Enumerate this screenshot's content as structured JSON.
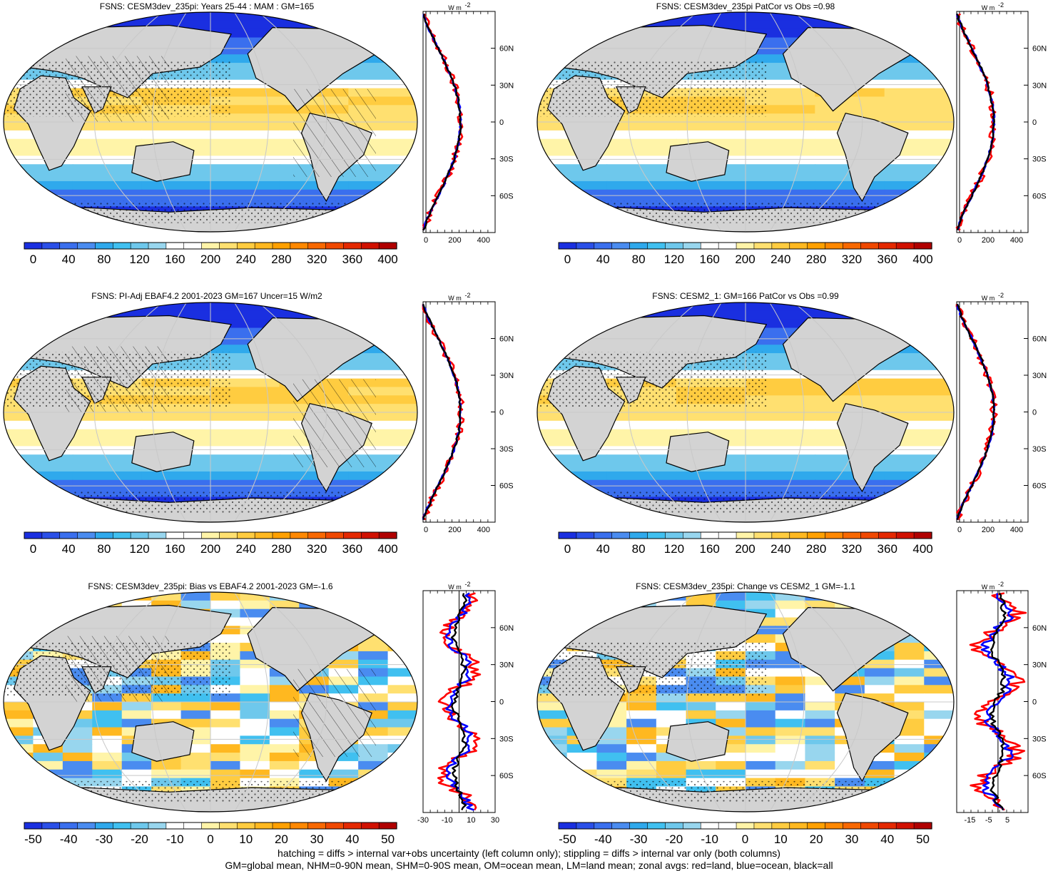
{
  "panels": [
    {
      "title": "FSNS: CESM3dev_235pi: Years 25-44 : MAM : GM=165",
      "kind": "abs"
    },
    {
      "title": "FSNS: CESM3dev_235pi PatCor vs Obs =0.98",
      "kind": "abs"
    },
    {
      "title": "FSNS: PI-Adj EBAF4.2 2001-2023 GM=167 Uncer=15 W/m2",
      "kind": "abs"
    },
    {
      "title": "FSNS: CESM2_1: GM=166 PatCor vs Obs =0.99",
      "kind": "abs"
    },
    {
      "title": "FSNS: CESM3dev_235pi: Bias vs EBAF4.2 2001-2023 GM=-1.6",
      "kind": "diff"
    },
    {
      "title": "FSNS: CESM3dev_235pi: Change vs CESM2_1 GM=-1.1",
      "kind": "diff"
    }
  ],
  "colorbars": {
    "abs": {
      "labels": [
        "0",
        "40",
        "80",
        "120",
        "160",
        "200",
        "240",
        "280",
        "320",
        "360",
        "400"
      ],
      "colors": [
        "#1a2fe0",
        "#2a4fe8",
        "#3a6fee",
        "#4a8cf0",
        "#2fa9ec",
        "#40c0f0",
        "#6ec8ec",
        "#98d6ee",
        "#ffffff",
        "#ffffff",
        "#fff4a8",
        "#ffe070",
        "#ffcc40",
        "#ffb820",
        "#ffa000",
        "#ff8800",
        "#f86800",
        "#f04800",
        "#e42800",
        "#d01000",
        "#b00000"
      ]
    },
    "diff": {
      "labels": [
        "-50",
        "-40",
        "-30",
        "-20",
        "-10",
        "0",
        "10",
        "20",
        "30",
        "40",
        "50"
      ],
      "colors": [
        "#1a2fe0",
        "#2a4fe8",
        "#3a6fee",
        "#4a8cf0",
        "#2fa9ec",
        "#40c0f0",
        "#6ec8ec",
        "#98d6ee",
        "#ffffff",
        "#ffffff",
        "#fff4a8",
        "#ffe070",
        "#ffcc40",
        "#ffb820",
        "#ffa000",
        "#ff8800",
        "#f86800",
        "#f04800",
        "#e42800",
        "#d01000",
        "#b00000"
      ]
    }
  },
  "zonal": {
    "unit": "W m",
    "unit_exp": "-2",
    "lat_labels": [
      "60N",
      "30N",
      "0",
      "30S",
      "60S"
    ],
    "abs_ticks": [
      "0",
      "200",
      "400"
    ],
    "diff_left_ticks": [
      "-30",
      "-10",
      "10",
      "30"
    ],
    "diff_right_ticks": [
      "-15",
      "-5",
      "5"
    ],
    "series_colors": {
      "land": "#ff0000",
      "ocean": "#0000ff",
      "all": "#000000"
    }
  },
  "map_colors": {
    "land": "#d3d3d3",
    "grid": "#c8c8c8",
    "coast": "#000000"
  },
  "footer": [
    "hatching = diffs > internal var+obs uncertainty (left column only); stippling = diffs > internal var only (both columns)",
    "GM=global mean, NHM=0-90N mean, SHM=0-90S mean, OM=ocean mean, LM=land mean; zonal avgs: red=land, blue=ocean, black=all"
  ]
}
